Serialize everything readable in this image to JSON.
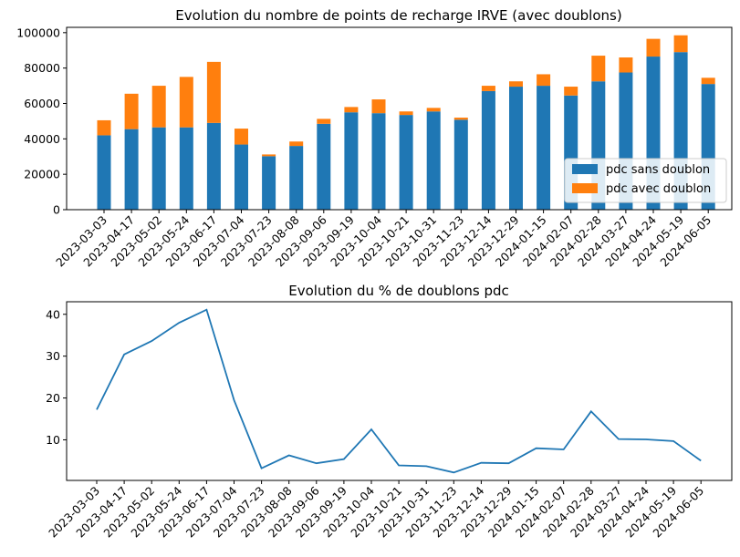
{
  "chart_data": [
    {
      "type": "bar",
      "stacked": true,
      "title": "Evolution du nombre de points de recharge IRVE (avec doublons)",
      "categories": [
        "2023-03-03",
        "2023-04-17",
        "2023-05-02",
        "2023-05-24",
        "2023-06-17",
        "2023-07-04",
        "2023-07-23",
        "2023-08-08",
        "2023-09-06",
        "2023-09-19",
        "2023-10-04",
        "2023-10-21",
        "2023-10-31",
        "2023-11-23",
        "2023-12-14",
        "2023-12-29",
        "2024-01-15",
        "2024-02-07",
        "2024-02-28",
        "2024-03-27",
        "2024-04-24",
        "2024-05-19",
        "2024-06-05"
      ],
      "series": [
        {
          "name": "pdc sans doublon",
          "color": "#1f77b4",
          "values": [
            42000,
            45500,
            46500,
            46500,
            49000,
            36800,
            30200,
            36000,
            48500,
            55000,
            54500,
            53500,
            55500,
            50800,
            67000,
            69500,
            70000,
            64500,
            72500,
            77500,
            86500,
            89000,
            71000
          ]
        },
        {
          "name": "pdc avec doublon",
          "color": "#ff7f0e",
          "values": [
            8500,
            20000,
            23500,
            28500,
            34500,
            9000,
            1000,
            2500,
            2800,
            3000,
            7800,
            2000,
            2000,
            1200,
            3000,
            3000,
            6500,
            5000,
            14500,
            8500,
            10000,
            9500,
            3500
          ]
        }
      ],
      "yticks": [
        0,
        20000,
        40000,
        60000,
        80000,
        100000
      ],
      "ylim": [
        0,
        103000
      ],
      "legend": "lower-right"
    },
    {
      "type": "line",
      "title": "Evolution du % de doublons pdc",
      "categories": [
        "2023-03-03",
        "2023-04-17",
        "2023-05-02",
        "2023-05-24",
        "2023-06-17",
        "2023-07-04",
        "2023-07-23",
        "2023-08-08",
        "2023-09-06",
        "2023-09-19",
        "2023-10-04",
        "2023-10-21",
        "2023-10-31",
        "2023-11-23",
        "2023-12-14",
        "2023-12-29",
        "2024-01-15",
        "2024-02-07",
        "2024-02-28",
        "2024-03-27",
        "2024-04-24",
        "2024-05-19",
        "2024-06-05"
      ],
      "series": [
        {
          "color": "#1f77b4",
          "values": [
            17.2,
            30.4,
            33.6,
            38.0,
            41.1,
            19.5,
            3.2,
            6.3,
            4.4,
            5.4,
            12.5,
            3.9,
            3.7,
            2.2,
            4.5,
            4.4,
            8.0,
            7.7,
            16.8,
            10.2,
            10.1,
            9.7,
            5.0
          ]
        }
      ],
      "yticks": [
        10,
        20,
        30,
        40
      ],
      "ylim": [
        0.3,
        43.0
      ]
    }
  ]
}
